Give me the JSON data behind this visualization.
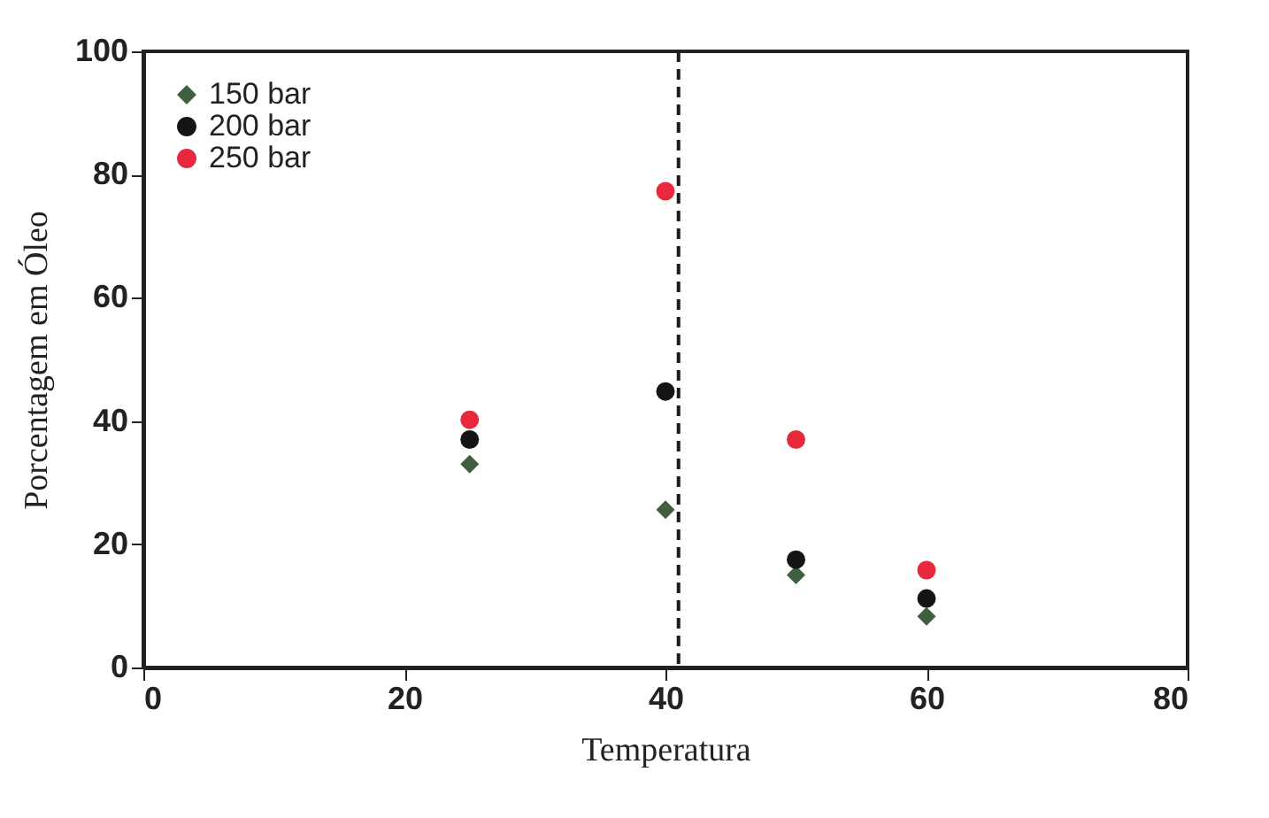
{
  "chart_data": {
    "type": "scatter",
    "xlabel": "Temperatura",
    "ylabel": "Porcentagem em Óleo",
    "x": [
      25,
      40,
      50,
      60
    ],
    "series": [
      {
        "name": "150 bar",
        "color": "#3f5f3f",
        "marker": "diamond",
        "values": [
          33,
          25.6,
          15,
          8.3
        ]
      },
      {
        "name": "200 bar",
        "color": "#151515",
        "marker": "circle",
        "values": [
          37,
          44.8,
          17.5,
          11.2
        ]
      },
      {
        "name": "250 bar",
        "color": "#e8283c",
        "marker": "circle",
        "values": [
          40.2,
          77.3,
          37,
          15.8
        ]
      }
    ],
    "xlim": [
      0,
      80
    ],
    "xticks": [
      0,
      20,
      40,
      60,
      80
    ],
    "ylim": [
      0,
      100
    ],
    "yticks": [
      0,
      20,
      40,
      60,
      80,
      100
    ],
    "ref_lines": [
      {
        "axis": "x",
        "value": 41,
        "color": "#1a1a1a",
        "line_style": "dashed"
      }
    ],
    "legend": "top left",
    "grid": false
  }
}
